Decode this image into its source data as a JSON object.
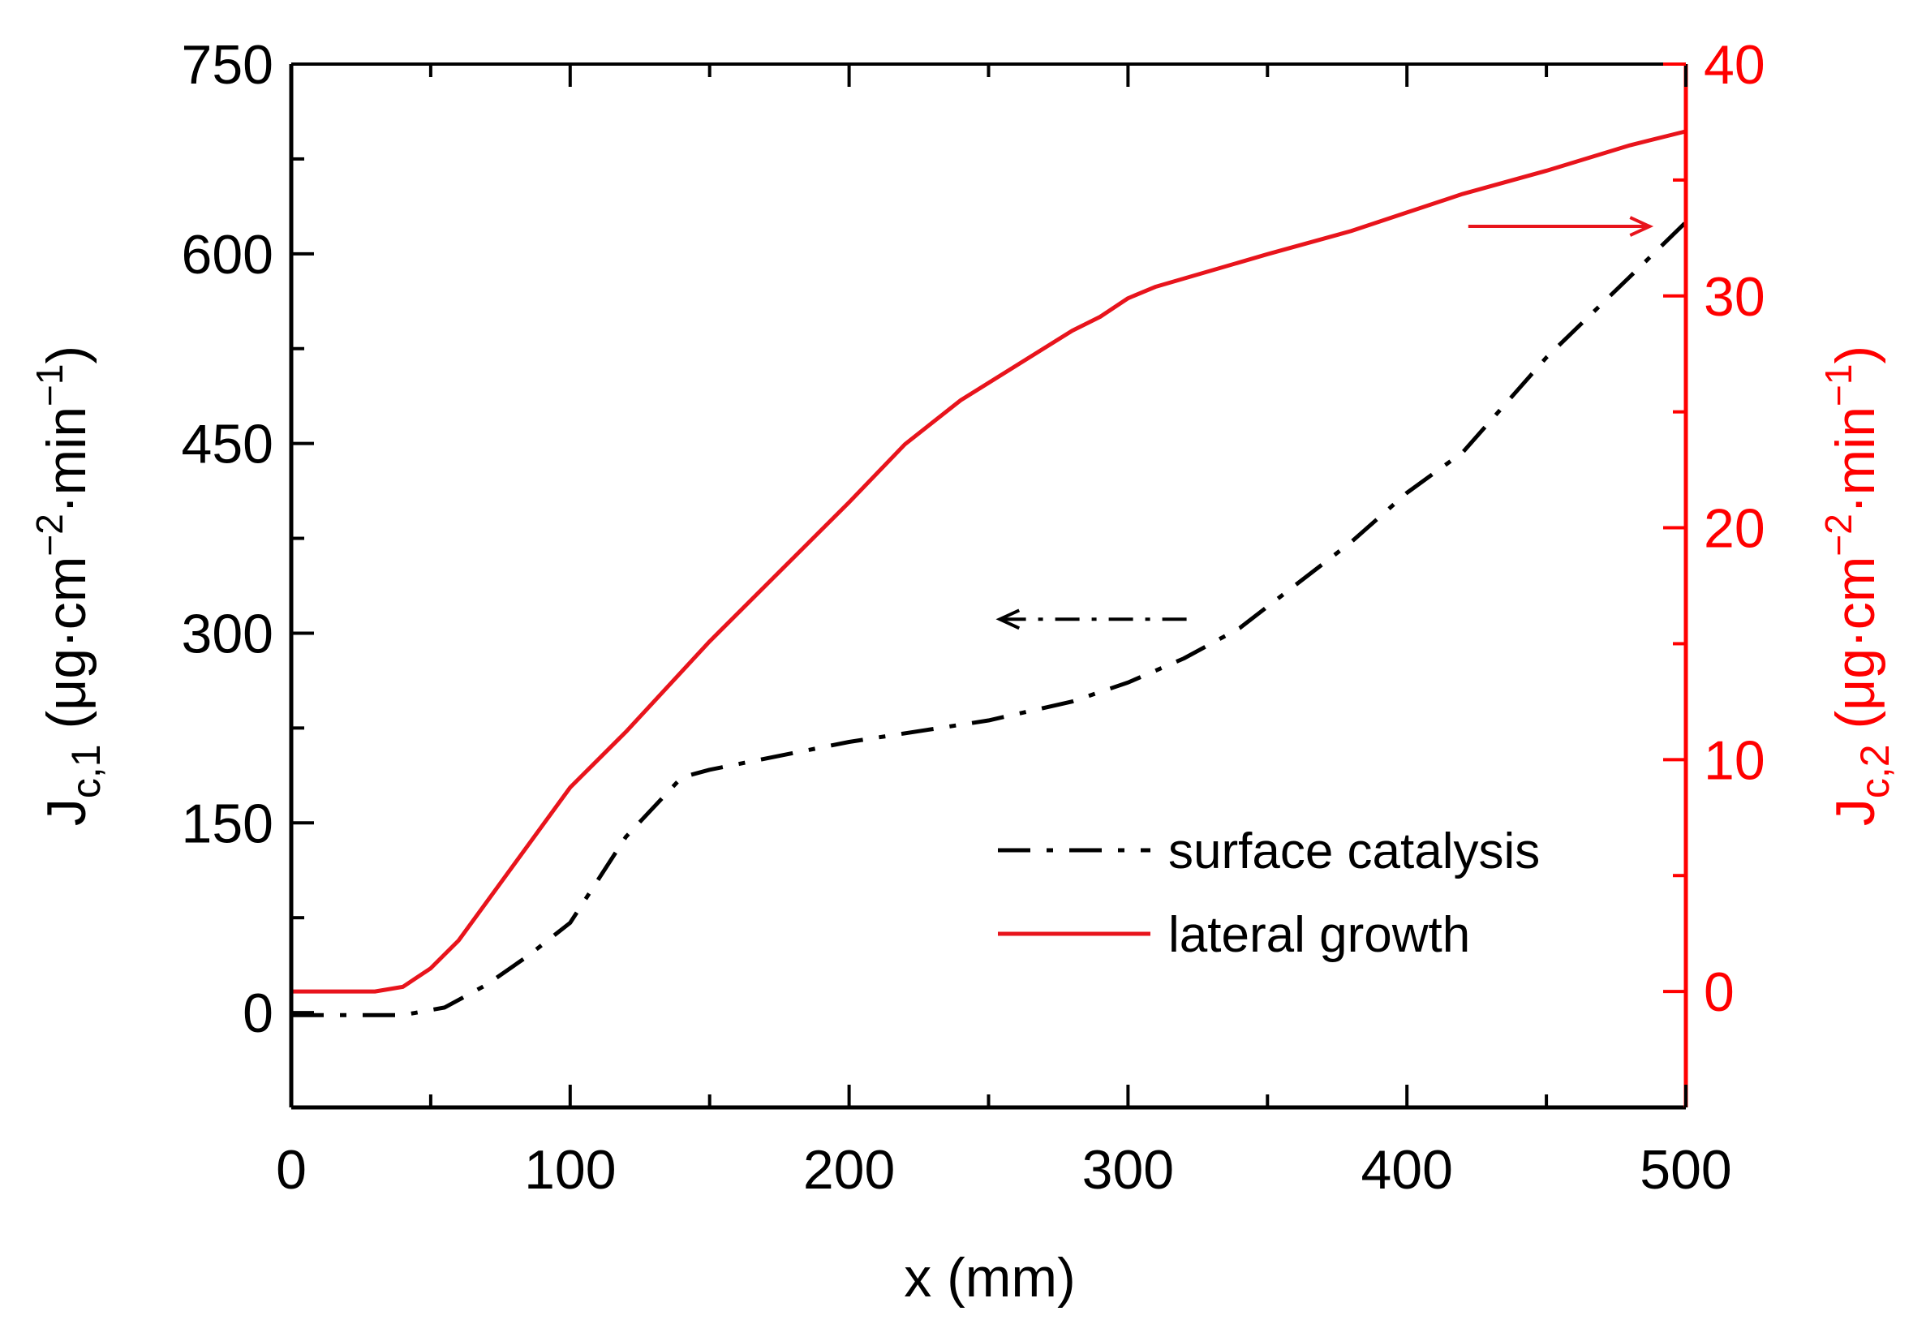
{
  "chart_data": {
    "type": "line",
    "xlabel": "x (mm)",
    "xlim": [
      0,
      500
    ],
    "xticks": [
      0,
      100,
      200,
      300,
      400,
      500
    ],
    "grid": false,
    "legend_placement": "center-right",
    "y_left": {
      "label": {
        "base": "J",
        "sub": "c,1",
        "mid": " (μg·cm",
        "sup1": "−2",
        "mid2": "·min",
        "sup2": "−1",
        "end": ")"
      },
      "lim": [
        -75,
        750
      ],
      "ticks": [
        0,
        150,
        300,
        450,
        600,
        750
      ],
      "color": "#000000"
    },
    "y_right": {
      "label": {
        "base": "J",
        "sub": "c,2",
        "mid": " (μg·cm",
        "sup1": "−2",
        "mid2": "·min",
        "sup2": "−1",
        "end": ")"
      },
      "lim": [
        -5,
        40
      ],
      "ticks": [
        0,
        10,
        20,
        30,
        40
      ],
      "color": "#ff0000"
    },
    "series": [
      {
        "name": "surface catalysis",
        "axis": "left",
        "style": "dash-dot",
        "color": "#000000",
        "x": [
          0,
          40,
          55,
          70,
          85,
          100,
          120,
          140,
          150,
          200,
          250,
          280,
          300,
          320,
          340,
          360,
          380,
          400,
          420,
          450,
          480,
          500
        ],
        "y": [
          -2,
          -2,
          4,
          22,
          45,
          71,
          139,
          186,
          192,
          214,
          231,
          246,
          261,
          280,
          304,
          338,
          372,
          411,
          443,
          518,
          582,
          625
        ]
      },
      {
        "name": "lateral growth",
        "axis": "right",
        "style": "solid",
        "color": "#e8141c",
        "x": [
          0,
          30,
          40,
          50,
          60,
          100,
          120,
          150,
          200,
          220,
          240,
          260,
          280,
          290,
          300,
          310,
          350,
          380,
          400,
          420,
          450,
          480,
          500
        ],
        "y": [
          0,
          0,
          0.2,
          1,
          2.2,
          8.8,
          11.2,
          15.1,
          21.1,
          23.6,
          25.5,
          27,
          28.5,
          29.1,
          29.9,
          30.4,
          31.8,
          32.8,
          33.6,
          34.4,
          35.4,
          36.5,
          37.1
        ]
      }
    ],
    "annotations": [
      {
        "type": "arrow",
        "points_to": "left axis",
        "axis": "left",
        "style": "dash-dot",
        "color": "#000000",
        "x_from": 321,
        "x_to": 254,
        "y": 311
      },
      {
        "type": "arrow",
        "points_to": "right axis",
        "axis": "right",
        "style": "solid",
        "color": "#e8141c",
        "x_from": 422,
        "x_to": 487,
        "y": 33
      }
    ]
  }
}
